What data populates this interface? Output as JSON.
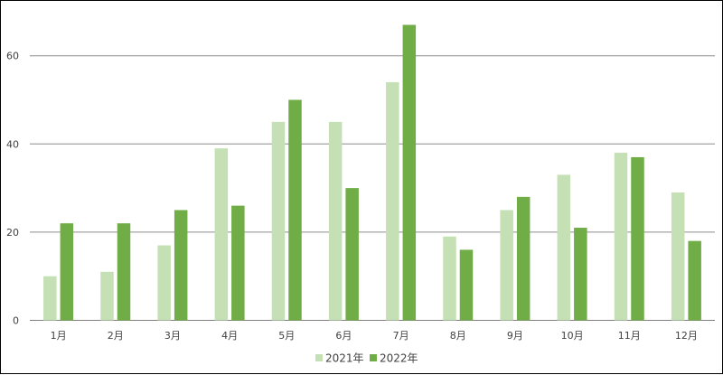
{
  "chart_data": {
    "type": "bar",
    "categories": [
      "1月",
      "2月",
      "3月",
      "4月",
      "5月",
      "6月",
      "7月",
      "8月",
      "9月",
      "10月",
      "11月",
      "12月"
    ],
    "series": [
      {
        "name": "2021年",
        "color": "#c5e0b4",
        "values": [
          10,
          11,
          17,
          39,
          45,
          45,
          54,
          19,
          25,
          33,
          38,
          29
        ]
      },
      {
        "name": "2022年",
        "color": "#70ad47",
        "values": [
          22,
          22,
          25,
          26,
          50,
          30,
          67,
          16,
          28,
          21,
          37,
          18
        ]
      }
    ],
    "yticks": [
      0,
      20,
      40,
      60
    ],
    "ylim": [
      0,
      70
    ],
    "grid": true,
    "legend": "bottom"
  }
}
